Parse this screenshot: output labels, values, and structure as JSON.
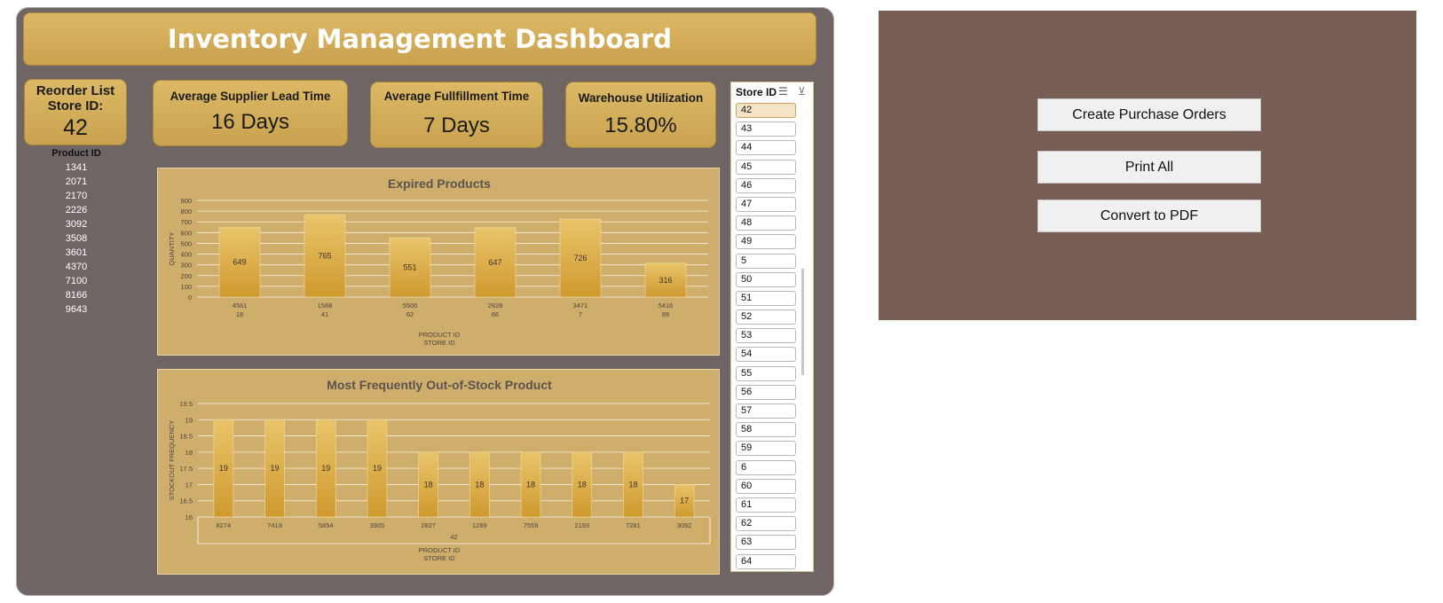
{
  "title": "Inventory Management Dashboard",
  "reorder": {
    "label_line1": "Reorder List",
    "label_line2": "Store ID:",
    "store_id": "42"
  },
  "kpis": {
    "lead_time": {
      "label": "Average Supplier Lead Time",
      "value": "16 Days"
    },
    "fulfillment": {
      "label": "Average Fullfillment Time",
      "value": "7 Days"
    },
    "utilization": {
      "label": "Warehouse Utilization",
      "value": "15.80%"
    }
  },
  "product_list": {
    "header": "Product ID",
    "items": [
      "1341",
      "2071",
      "2170",
      "2226",
      "3092",
      "3508",
      "3601",
      "4370",
      "7100",
      "8166",
      "9643"
    ]
  },
  "slicer": {
    "header": "Store ID",
    "multiselect_icon": "multi-select-icon",
    "clear_filter_icon": "clear-filter-icon",
    "selected": "42",
    "items": [
      "42",
      "43",
      "44",
      "45",
      "46",
      "47",
      "48",
      "49",
      "5",
      "50",
      "51",
      "52",
      "53",
      "54",
      "55",
      "56",
      "57",
      "58",
      "59",
      "6",
      "60",
      "61",
      "62",
      "63",
      "64"
    ]
  },
  "buttons": {
    "create_po": "Create Purchase Orders",
    "print_all": "Print All",
    "convert_pdf": "Convert to PDF"
  },
  "colors": {
    "panel": "#6f6565",
    "gold": "#d4b060",
    "bar": "#d9a63c",
    "right_panel": "#775e55"
  },
  "chart_data": [
    {
      "type": "bar",
      "title": "Expired Products",
      "ylabel": "QUANTITY",
      "xlabel_line1": "PRODUCT ID",
      "xlabel_line2": "STORE ID",
      "ylim": [
        0,
        900
      ],
      "yticks": [
        0,
        100,
        200,
        300,
        400,
        500,
        600,
        700,
        800,
        900
      ],
      "categories": [
        {
          "product": "4561",
          "store": "18"
        },
        {
          "product": "1568",
          "store": "41"
        },
        {
          "product": "5500",
          "store": "62"
        },
        {
          "product": "2828",
          "store": "66"
        },
        {
          "product": "3471",
          "store": "7"
        },
        {
          "product": "5416",
          "store": "89"
        }
      ],
      "values": [
        649,
        765,
        551,
        647,
        726,
        316
      ]
    },
    {
      "type": "bar",
      "title": "Most Frequently Out-of-Stock Product",
      "ylabel": "STOCKOUT FREQUENCY",
      "xlabel_line1": "PRODUCT ID",
      "xlabel_line2": "STORE ID",
      "store_group": "42",
      "ylim": [
        16,
        19.5
      ],
      "yticks": [
        16,
        16.5,
        17,
        17.5,
        18,
        18.5,
        19,
        19.5
      ],
      "categories": [
        "8274",
        "7419",
        "5854",
        "3905",
        "2827",
        "1269",
        "7559",
        "2193",
        "7281",
        "3092"
      ],
      "values": [
        19,
        19,
        19,
        19,
        18,
        18,
        18,
        18,
        18,
        17
      ]
    }
  ]
}
